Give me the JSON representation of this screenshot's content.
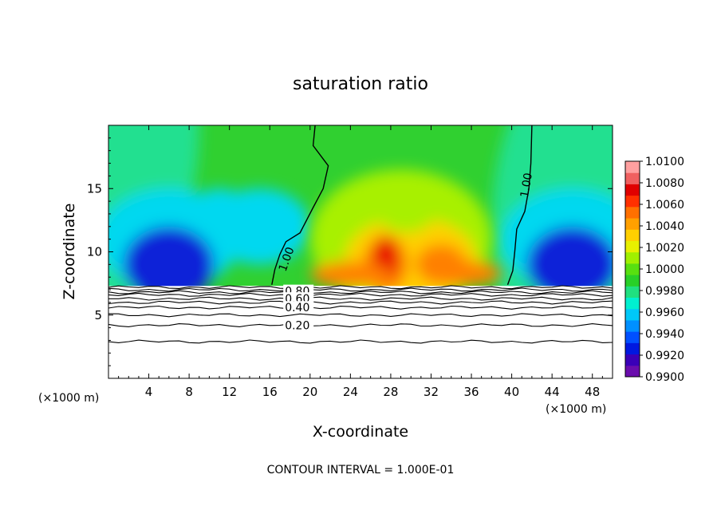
{
  "chart_data": {
    "type": "heatmap",
    "title": "saturation ratio",
    "xlabel": "X-coordinate",
    "ylabel": "Z-coordinate",
    "x_unit_left": "(×1000 m)",
    "x_unit_right": "(×1000 m)",
    "xlim": [
      0,
      50
    ],
    "ylim": [
      0,
      20
    ],
    "x_ticks": [
      4,
      8,
      12,
      16,
      20,
      24,
      28,
      32,
      36,
      40,
      44,
      48
    ],
    "x_tick_labels": [
      "4",
      "8",
      "12",
      "16",
      "20",
      "24",
      "28",
      "32",
      "36",
      "40",
      "44",
      "48"
    ],
    "y_ticks": [
      5,
      10,
      15
    ],
    "y_tick_labels": [
      "5",
      "10",
      "15"
    ],
    "footer": "CONTOUR INTERVAL = 1.000E-01",
    "colorbar": {
      "levels": [
        "0.9900",
        "0.9920",
        "0.9940",
        "0.9960",
        "0.9980",
        "1.0000",
        "1.0020",
        "1.0040",
        "1.0060",
        "1.0080",
        "1.0100"
      ],
      "colors": [
        "#6a0dad",
        "#3a00b8",
        "#0018e0",
        "#0050ff",
        "#0090ff",
        "#00c8f8",
        "#00f0d0",
        "#20e080",
        "#28d028",
        "#58e010",
        "#a0f000",
        "#e8f000",
        "#ffd000",
        "#ffa000",
        "#ff7000",
        "#ff3000",
        "#e00000",
        "#f06060",
        "#ffa0a0"
      ]
    },
    "field_levels": [
      {
        "level": 0.992,
        "color": "#1020d8"
      },
      {
        "level": 0.996,
        "color": "#00d8f0"
      },
      {
        "level": 0.998,
        "color": "#20e090"
      },
      {
        "level": 1.0,
        "color": "#30d030"
      },
      {
        "level": 1.002,
        "color": "#a8f000"
      },
      {
        "level": 1.004,
        "color": "#ffd000"
      },
      {
        "level": 1.006,
        "color": "#ff8000"
      },
      {
        "level": 1.008,
        "color": "#e80000"
      }
    ],
    "cloud_base_z": 7.3,
    "contour_labels": [
      {
        "text": "1.00",
        "x": 17.2,
        "z": 8.5
      },
      {
        "text": "1.00",
        "x": 41.2,
        "z": 14.3
      },
      {
        "text": "0.80",
        "x": 17.5,
        "z": 6.9
      },
      {
        "text": "0.60",
        "x": 17.5,
        "z": 6.3
      },
      {
        "text": "0.40",
        "x": 17.5,
        "z": 5.6
      },
      {
        "text": "0.20",
        "x": 17.5,
        "z": 4.2
      }
    ],
    "contour_lines_z": [
      7.2,
      7.0,
      6.8,
      6.6,
      6.3,
      6.0,
      5.6,
      5.0,
      4.2,
      2.9
    ],
    "unity_line_left": [
      [
        20.5,
        20
      ],
      [
        20.3,
        18.4
      ],
      [
        21.8,
        16.8
      ],
      [
        21.3,
        15.0
      ],
      [
        20.3,
        13.5
      ],
      [
        19.0,
        11.5
      ],
      [
        17.6,
        10.8
      ],
      [
        17.0,
        9.8
      ],
      [
        16.5,
        8.6
      ],
      [
        16.2,
        7.4
      ]
    ],
    "unity_line_right": [
      [
        42.0,
        20
      ],
      [
        41.9,
        17.0
      ],
      [
        41.7,
        15.0
      ],
      [
        41.3,
        13.2
      ],
      [
        40.5,
        11.8
      ],
      [
        40.3,
        10.0
      ],
      [
        40.1,
        8.5
      ],
      [
        39.6,
        7.4
      ]
    ]
  }
}
